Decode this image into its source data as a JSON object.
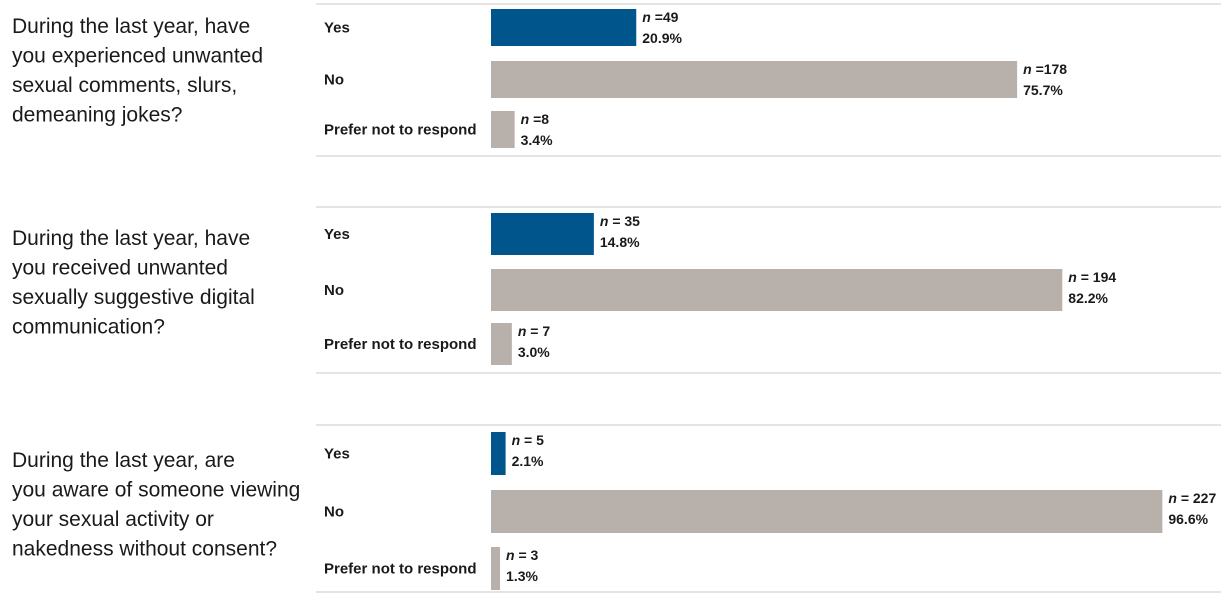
{
  "chart_data": [
    {
      "type": "bar",
      "orientation": "horizontal",
      "title": "During the last year, have you experienced unwanted sexual comments, slurs, demeaning jokes?",
      "categories": [
        "Yes",
        "No",
        "Prefer not to respond"
      ],
      "values": [
        20.9,
        75.7,
        3.4
      ],
      "value_labels": [
        "20.9%",
        "75.7%",
        "3.4%"
      ],
      "n_labels": [
        "=49",
        "=178",
        "=8"
      ],
      "colors": [
        "#00558c",
        "#b8b0aa",
        "#b8b0aa"
      ]
    },
    {
      "type": "bar",
      "orientation": "horizontal",
      "title": "During the last year, have you received unwanted sexually suggestive digital communication?",
      "categories": [
        "Yes",
        "No",
        "Prefer not to respond"
      ],
      "values": [
        14.8,
        82.2,
        3.0
      ],
      "value_labels": [
        "14.8%",
        "82.2%",
        "3.0%"
      ],
      "n_labels": [
        "= 35",
        "= 194",
        "= 7"
      ],
      "colors": [
        "#00558c",
        "#b8b0aa",
        "#b8b0aa"
      ]
    },
    {
      "type": "bar",
      "orientation": "horizontal",
      "title": "During the last year, are you aware of someone viewing your sexual activity or nakedness without consent?",
      "categories": [
        "Yes",
        "No",
        "Prefer not to respond"
      ],
      "values": [
        2.1,
        96.6,
        1.3
      ],
      "value_labels": [
        "2.1%",
        "96.6%",
        "1.3%"
      ],
      "n_labels": [
        "= 5",
        "= 227",
        "= 3"
      ],
      "colors": [
        "#00558c",
        "#b8b0aa",
        "#b8b0aa"
      ]
    }
  ],
  "n_symbol": "n"
}
